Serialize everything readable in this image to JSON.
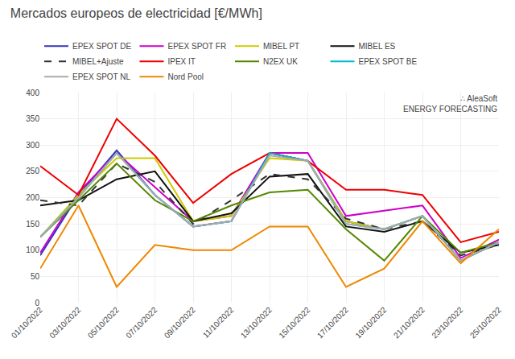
{
  "chart_data": {
    "type": "line",
    "title": "Mercados europeos de electricidad [€/MWh]",
    "categories": [
      "01/10/2022",
      "03/10/2022",
      "05/10/2022",
      "07/10/2022",
      "09/10/2022",
      "11/10/2022",
      "13/10/2022",
      "15/10/2022",
      "17/10/2022",
      "19/10/2022",
      "21/10/2022",
      "23/10/2022",
      "25/10/2022"
    ],
    "series": [
      {
        "name": "EPEX SPOT DE",
        "color": "#3333bb",
        "line_style": "solid",
        "values": [
          90,
          205,
          290,
          205,
          145,
          155,
          285,
          270,
          155,
          140,
          165,
          80,
          115
        ]
      },
      {
        "name": "EPEX SPOT FR",
        "color": "#cc00cc",
        "line_style": "solid",
        "values": [
          95,
          210,
          285,
          220,
          155,
          165,
          285,
          285,
          165,
          175,
          185,
          85,
          120
        ]
      },
      {
        "name": "MIBEL PT",
        "color": "#cccc00",
        "line_style": "solid",
        "values": [
          125,
          205,
          275,
          275,
          155,
          165,
          275,
          270,
          155,
          140,
          165,
          80,
          115
        ]
      },
      {
        "name": "MIBEL ES",
        "color": "#111111",
        "line_style": "solid",
        "values": [
          185,
          195,
          235,
          250,
          155,
          170,
          240,
          245,
          145,
          135,
          155,
          95,
          110
        ]
      },
      {
        "name": "MIBEL+Ajuste",
        "color": "#333333",
        "line_style": "dashed",
        "values": [
          195,
          185,
          265,
          230,
          150,
          195,
          245,
          235,
          160,
          140,
          155,
          90,
          110
        ]
      },
      {
        "name": "IPEX IT",
        "color": "#ee0000",
        "line_style": "solid",
        "values": [
          260,
          205,
          350,
          280,
          190,
          245,
          285,
          270,
          215,
          215,
          205,
          115,
          135
        ]
      },
      {
        "name": "N2EX UK",
        "color": "#558800",
        "line_style": "solid",
        "values": [
          125,
          195,
          265,
          195,
          155,
          185,
          210,
          215,
          140,
          80,
          165,
          95,
          115
        ]
      },
      {
        "name": "EPEX SPOT BE",
        "color": "#00bbcc",
        "line_style": "solid",
        "values": [
          125,
          200,
          285,
          205,
          145,
          155,
          285,
          270,
          150,
          140,
          165,
          80,
          115
        ]
      },
      {
        "name": "EPEX SPOT NL",
        "color": "#aaaaaa",
        "line_style": "solid",
        "values": [
          125,
          200,
          285,
          205,
          145,
          155,
          280,
          270,
          150,
          140,
          165,
          80,
          115
        ]
      },
      {
        "name": "Nord Pool",
        "color": "#ee8800",
        "line_style": "solid",
        "values": [
          65,
          185,
          30,
          110,
          100,
          100,
          145,
          145,
          30,
          65,
          155,
          75,
          140
        ]
      }
    ],
    "ylim": [
      0,
      400
    ],
    "yticks": [
      0,
      50,
      100,
      150,
      200,
      250,
      300,
      350,
      400
    ],
    "grid": true,
    "legend": "top",
    "annotations": [
      "∴ AleaSoft\nENERGY FORECASTING"
    ]
  }
}
